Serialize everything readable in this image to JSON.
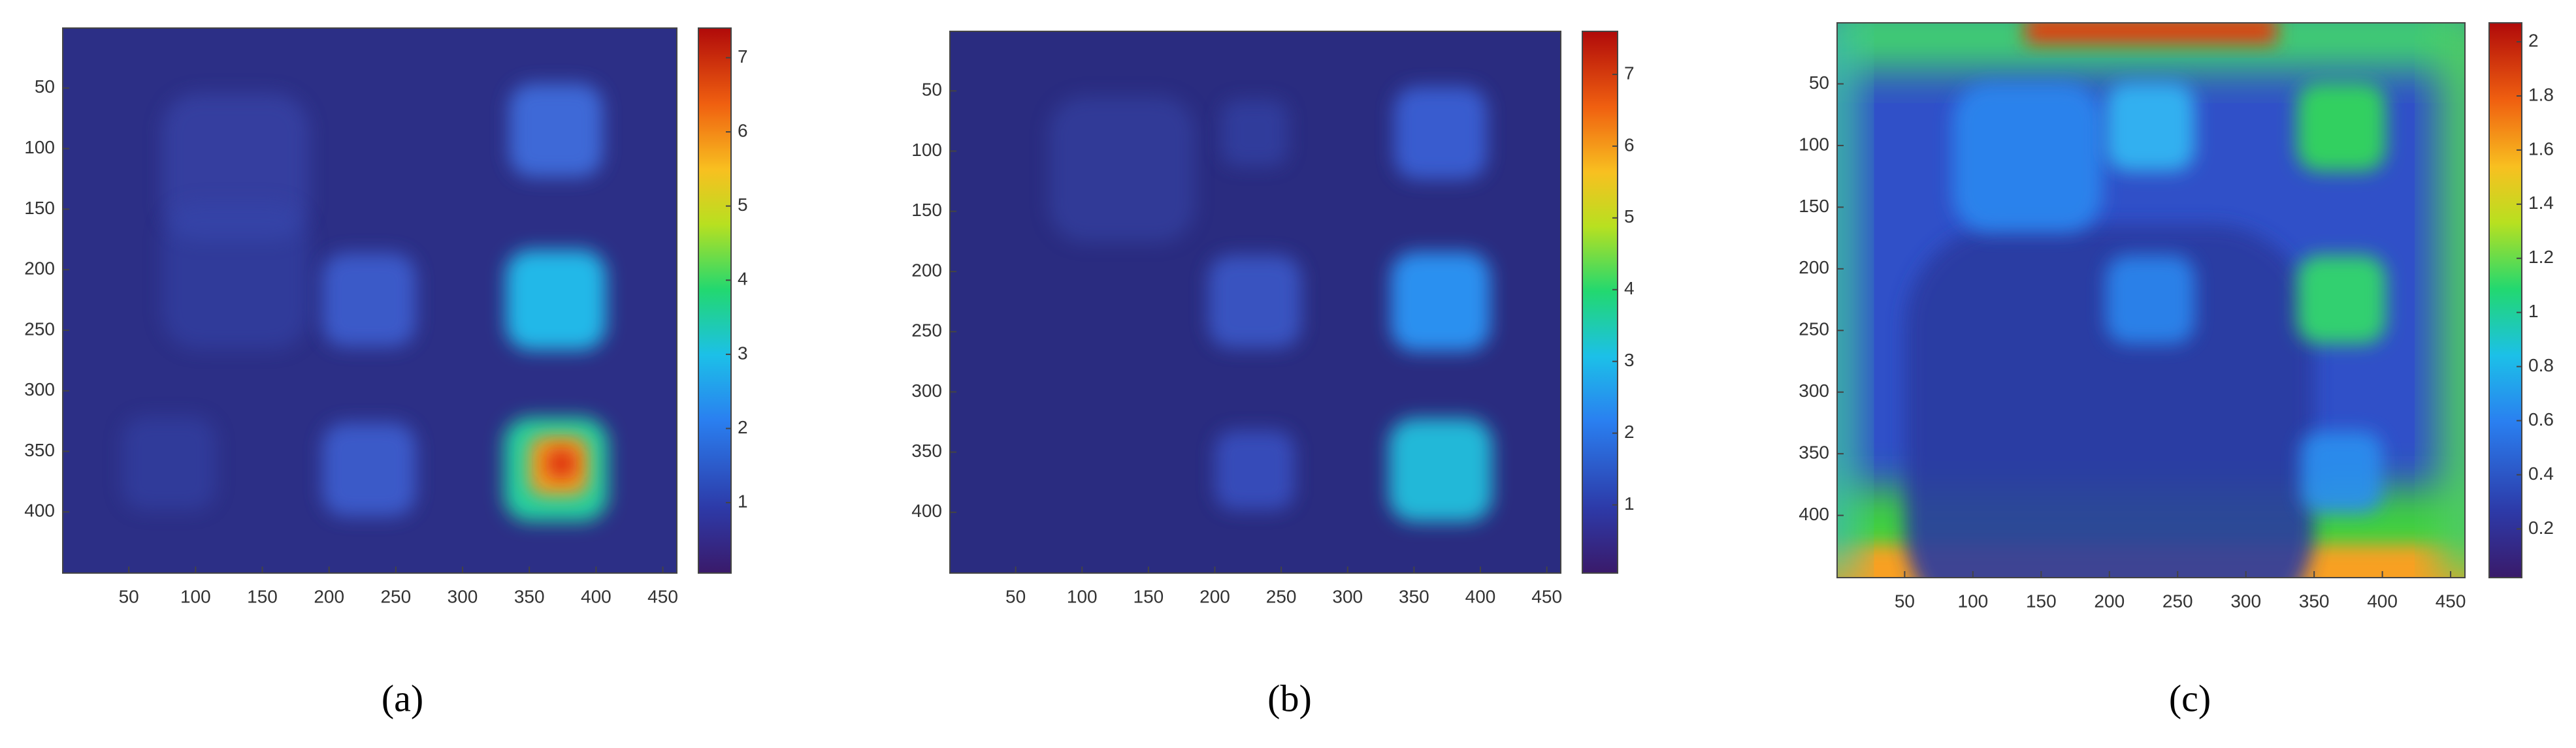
{
  "chart_data": [
    {
      "type": "heatmap",
      "label": "(a)",
      "xlim": [
        0.5,
        460.5
      ],
      "ylim": [
        0.5,
        450.5
      ],
      "xticks": [
        50,
        100,
        150,
        200,
        250,
        300,
        350,
        400,
        450
      ],
      "yticks": [
        50,
        100,
        150,
        200,
        250,
        300,
        350,
        400
      ],
      "colorbar_lim": [
        0.05,
        7.4
      ],
      "colorbar_ticks": [
        1,
        2,
        3,
        4,
        5,
        6,
        7
      ]
    },
    {
      "type": "heatmap",
      "label": "(b)",
      "xlim": [
        0.5,
        460.5
      ],
      "ylim": [
        0.5,
        450.5
      ],
      "xticks": [
        50,
        100,
        150,
        200,
        250,
        300,
        350,
        400,
        450
      ],
      "yticks": [
        50,
        100,
        150,
        200,
        250,
        300,
        350,
        400
      ],
      "colorbar_lim": [
        0.05,
        7.6
      ],
      "colorbar_ticks": [
        1,
        2,
        3,
        4,
        5,
        6,
        7
      ]
    },
    {
      "type": "heatmap",
      "label": "(c)",
      "xlim": [
        0.5,
        460.5
      ],
      "ylim": [
        0.5,
        450.5
      ],
      "xticks": [
        50,
        100,
        150,
        200,
        250,
        300,
        350,
        400,
        450
      ],
      "yticks": [
        50,
        100,
        150,
        200,
        250,
        300,
        350,
        400
      ],
      "colorbar_lim": [
        0.02,
        2.07
      ],
      "colorbar_ticks": [
        0.2,
        0.4,
        0.6,
        0.8,
        1,
        1.2,
        1.4,
        1.6,
        1.8,
        2
      ]
    }
  ]
}
